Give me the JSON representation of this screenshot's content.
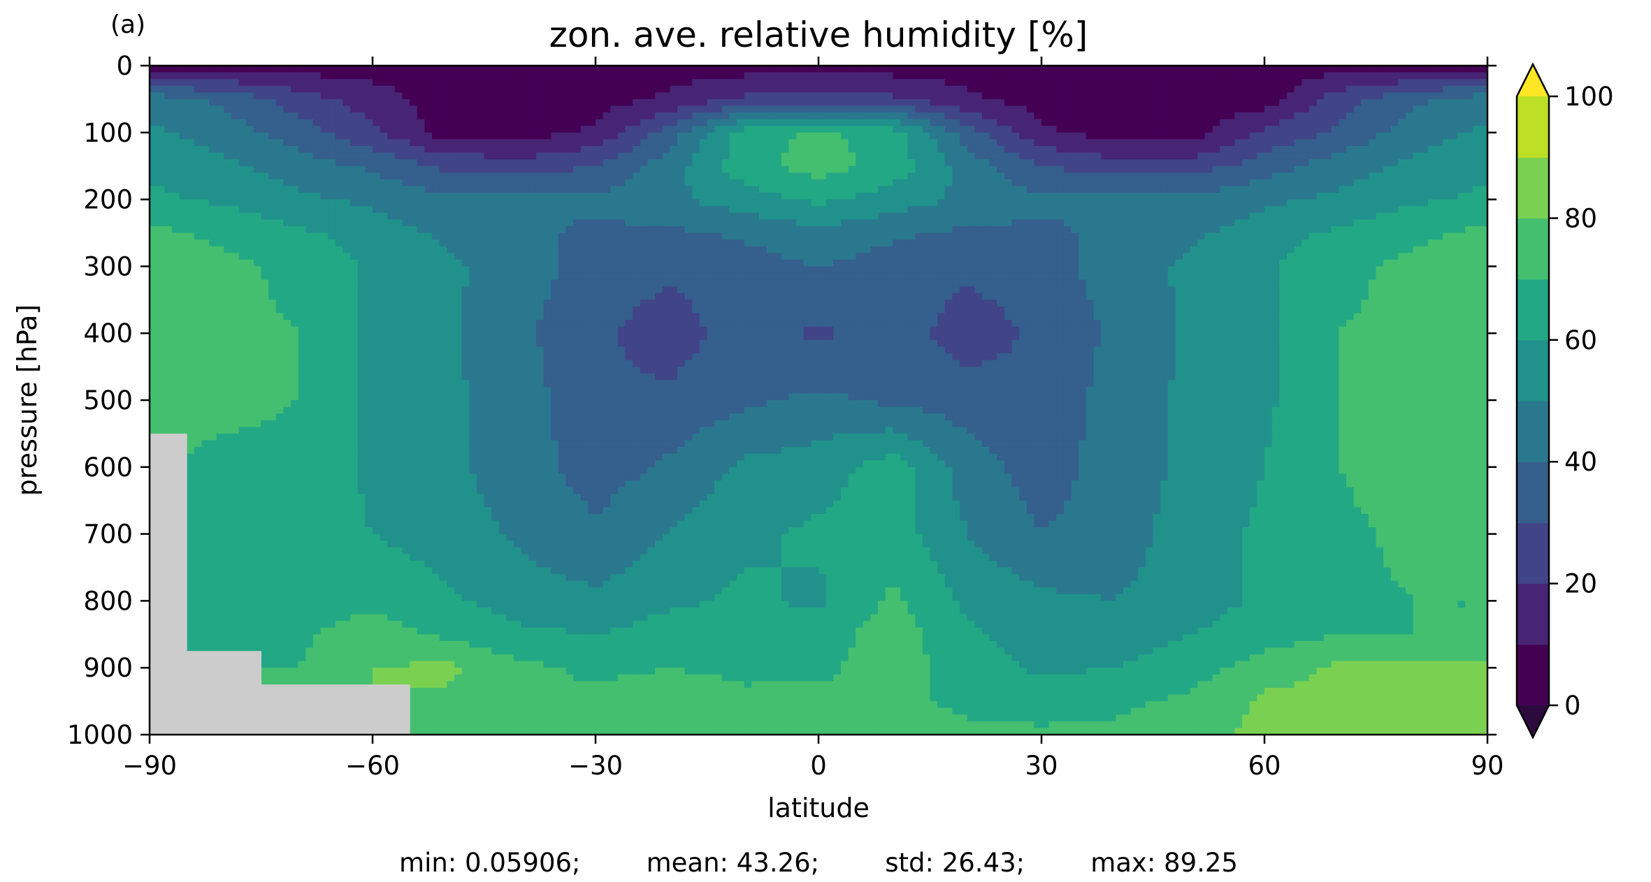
{
  "panel_label": "(a)",
  "chart_data": {
    "type": "heatmap",
    "subtype": "filled-contour",
    "title": "zon. ave. relative humidity [%]",
    "xlabel": "latitude",
    "ylabel": "pressure [hPa]",
    "xlim": [
      -90,
      90
    ],
    "ylim": [
      1000,
      0
    ],
    "y_inverted": true,
    "x_ticks": [
      -90,
      -60,
      -30,
      0,
      30,
      60,
      90
    ],
    "x_tick_labels": [
      "−90",
      "−60",
      "−30",
      "0",
      "30",
      "60",
      "90"
    ],
    "y_ticks": [
      0,
      100,
      200,
      300,
      400,
      500,
      600,
      700,
      800,
      900,
      1000
    ],
    "y_tick_labels": [
      "0",
      "100",
      "200",
      "300",
      "400",
      "500",
      "600",
      "700",
      "800",
      "900",
      "1000"
    ],
    "contour_levels": [
      0,
      10,
      20,
      30,
      40,
      50,
      60,
      70,
      80,
      90,
      100
    ],
    "colorbar": {
      "ticks": [
        0,
        20,
        40,
        60,
        80,
        100
      ],
      "tick_labels": [
        "0",
        "20",
        "40",
        "60",
        "80",
        "100"
      ],
      "extend": "both",
      "colors": [
        "#440154",
        "#482475",
        "#414487",
        "#355f8d",
        "#2a788e",
        "#21918c",
        "#22a884",
        "#44bf70",
        "#7ad151",
        "#bddf26",
        "#fde725"
      ],
      "under_color": "#2d0a3e",
      "over_color": "#fde725"
    },
    "missing_color": "#cccccc",
    "stats": [
      {
        "label": "min",
        "value": "0.05906"
      },
      {
        "label": "mean",
        "value": "43.26"
      },
      {
        "label": "std",
        "value": "26.43"
      },
      {
        "label": "max",
        "value": "89.25"
      }
    ],
    "stats_text": "min: 0.05906;        mean: 43.26;        std: 26.43;        max: 89.25",
    "sample_grid": {
      "latitude": [
        -90,
        -80,
        -70,
        -60,
        -50,
        -40,
        -30,
        -20,
        -10,
        0,
        10,
        20,
        30,
        40,
        50,
        60,
        70,
        80,
        90
      ],
      "pressure": [
        0,
        50,
        100,
        150,
        200,
        250,
        300,
        400,
        500,
        600,
        700,
        800,
        850,
        900,
        950,
        1000
      ],
      "values": [
        [
          5,
          5,
          5,
          5,
          5,
          5,
          5,
          5,
          5,
          5,
          5,
          5,
          5,
          5,
          5,
          5,
          5,
          5,
          5
        ],
        [
          45,
          38,
          25,
          15,
          5,
          5,
          5,
          12,
          22,
          25,
          22,
          12,
          5,
          5,
          5,
          5,
          25,
          38,
          45
        ],
        [
          52,
          45,
          35,
          22,
          5,
          5,
          12,
          35,
          65,
          72,
          65,
          35,
          12,
          5,
          5,
          22,
          32,
          45,
          52
        ],
        [
          58,
          52,
          45,
          38,
          28,
          25,
          30,
          45,
          66,
          75,
          66,
          45,
          30,
          25,
          25,
          35,
          45,
          52,
          58
        ],
        [
          62,
          58,
          52,
          48,
          42,
          42,
          42,
          48,
          55,
          62,
          55,
          48,
          42,
          42,
          42,
          48,
          52,
          58,
          62
        ],
        [
          72,
          68,
          62,
          55,
          48,
          42,
          38,
          38,
          42,
          48,
          42,
          38,
          38,
          42,
          48,
          55,
          62,
          68,
          72
        ],
        [
          75,
          72,
          68,
          58,
          52,
          45,
          35,
          32,
          35,
          40,
          35,
          32,
          35,
          45,
          52,
          58,
          68,
          72,
          75
        ],
        [
          75,
          72,
          70,
          58,
          52,
          42,
          32,
          25,
          35,
          28,
          35,
          25,
          32,
          42,
          52,
          58,
          70,
          72,
          75
        ],
        [
          75,
          72,
          70,
          58,
          52,
          45,
          32,
          32,
          38,
          42,
          38,
          35,
          32,
          45,
          52,
          58,
          70,
          72,
          75
        ],
        [
          null,
          68,
          68,
          58,
          52,
          45,
          35,
          42,
          52,
          55,
          65,
          45,
          35,
          45,
          52,
          60,
          70,
          75,
          75
        ],
        [
          null,
          62,
          65,
          60,
          55,
          48,
          42,
          50,
          58,
          62,
          65,
          50,
          40,
          45,
          55,
          62,
          68,
          72,
          72
        ],
        [
          null,
          60,
          65,
          68,
          62,
          55,
          52,
          58,
          62,
          58,
          72,
          58,
          52,
          50,
          55,
          62,
          68,
          70,
          70
        ],
        [
          null,
          62,
          68,
          75,
          68,
          62,
          60,
          65,
          66,
          65,
          75,
          62,
          55,
          55,
          60,
          65,
          70,
          70,
          70
        ],
        [
          null,
          null,
          70,
          80,
          82,
          72,
          68,
          70,
          68,
          68,
          75,
          65,
          58,
          60,
          65,
          75,
          82,
          82,
          82
        ],
        [
          null,
          null,
          null,
          null,
          78,
          72,
          72,
          75,
          72,
          72,
          72,
          68,
          65,
          68,
          72,
          82,
          82,
          82,
          82
        ],
        [
          null,
          null,
          null,
          null,
          80,
          78,
          75,
          75,
          75,
          75,
          75,
          72,
          72,
          72,
          78,
          82,
          82,
          82,
          82
        ]
      ]
    }
  }
}
